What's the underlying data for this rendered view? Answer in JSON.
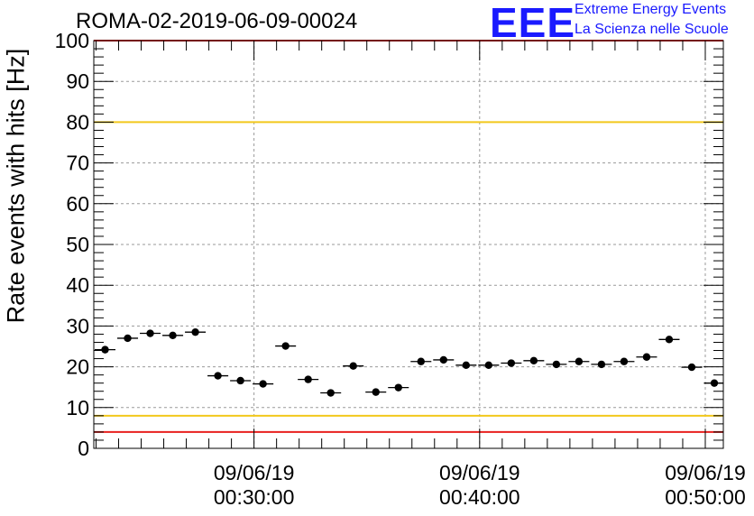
{
  "header": {
    "run_title": "ROMA-02-2019-06-09-00024",
    "logo_text": "EEE",
    "logo_line1": "Extreme Energy Events",
    "logo_line2": "La Scienza nelle Scuole"
  },
  "chart_data": {
    "type": "scatter",
    "title": "ROMA-02-2019-06-09-00024",
    "xlabel": "",
    "ylabel": "Rate events with hits [Hz]",
    "ylim": [
      0,
      100
    ],
    "y_ticks": [
      "0",
      "10",
      "20",
      "30",
      "40",
      "50",
      "60",
      "70",
      "80",
      "90",
      "100"
    ],
    "x_unit": "minutes after 00:00:00 on 09/06/19",
    "xlim": [
      22.9,
      50.8
    ],
    "x_ticks": [
      {
        "value": 30,
        "date": "09/06/19",
        "time": "00:30:00"
      },
      {
        "value": 40,
        "date": "09/06/19",
        "time": "00:40:00"
      },
      {
        "value": 50,
        "date": "09/06/19",
        "time": "00:50:00"
      }
    ],
    "grid": true,
    "reference_lines": [
      {
        "y": 100,
        "color": "#e8201e"
      },
      {
        "y": 80,
        "color": "#f2c81c"
      },
      {
        "y": 8,
        "color": "#f2c81c"
      },
      {
        "y": 4,
        "color": "#e8201e"
      }
    ],
    "bin_width_minutes": 1,
    "series": [
      {
        "marker_color": "#000000",
        "x": [
          23.4,
          24.4,
          25.4,
          26.4,
          27.4,
          28.4,
          29.4,
          30.4,
          31.4,
          32.4,
          33.4,
          34.4,
          35.4,
          36.4,
          37.4,
          38.4,
          39.4,
          40.4,
          41.4,
          42.4,
          43.4,
          44.4,
          45.4,
          46.4,
          47.4,
          48.4,
          49.4,
          50.4
        ],
        "y": [
          24.2,
          27.0,
          28.2,
          27.7,
          28.5,
          17.8,
          16.6,
          15.8,
          25.1,
          16.9,
          13.6,
          20.2,
          13.8,
          14.9,
          21.3,
          21.7,
          20.4,
          20.4,
          20.9,
          21.5,
          20.6,
          21.3,
          20.6,
          21.3,
          22.4,
          26.7,
          19.9,
          16.0
        ]
      }
    ]
  }
}
